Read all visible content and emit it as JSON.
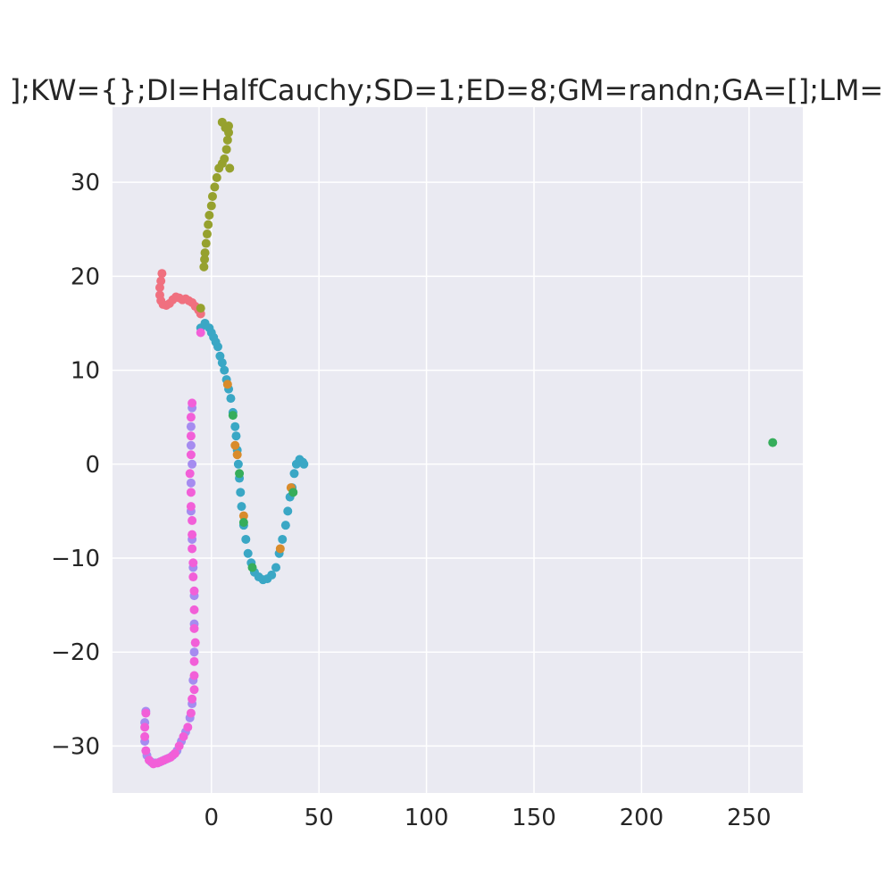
{
  "chart_data": {
    "type": "scatter",
    "title": "];KW={};DI=HalfCauchy;SD=1;ED=8;GM=randn;GA=[];LM=",
    "xlabel": "",
    "ylabel": "",
    "xlim": [
      -46,
      275
    ],
    "ylim": [
      -35,
      38
    ],
    "xticks": [
      0,
      50,
      100,
      150,
      200,
      250
    ],
    "yticks": [
      -30,
      -20,
      -10,
      0,
      10,
      20,
      30
    ],
    "xtick_labels": [
      "0",
      "50",
      "100",
      "150",
      "200",
      "250"
    ],
    "ytick_labels": [
      "−30",
      "−20",
      "−10",
      "0",
      "10",
      "20",
      "30"
    ],
    "grid": true,
    "background": "#eaeaf2",
    "series": [
      {
        "color": "#f0707f",
        "points": [
          [
            -23,
            20.3
          ],
          [
            -23.5,
            19.5
          ],
          [
            -24,
            18.8
          ],
          [
            -24,
            18.0
          ],
          [
            -23.5,
            17.4
          ],
          [
            -22.5,
            17.0
          ],
          [
            -21,
            16.9
          ],
          [
            -19.5,
            17.1
          ],
          [
            -18,
            17.5
          ],
          [
            -16.5,
            17.8
          ],
          [
            -15,
            17.7
          ],
          [
            -13.5,
            17.5
          ],
          [
            -12,
            17.6
          ],
          [
            -10.5,
            17.4
          ],
          [
            -9,
            17.2
          ],
          [
            -7.5,
            16.8
          ],
          [
            -6,
            16.4
          ],
          [
            -5,
            16.0
          ]
        ]
      },
      {
        "color": "#96a12e",
        "points": [
          [
            -3.5,
            21.0
          ],
          [
            -3.2,
            21.8
          ],
          [
            -3,
            22.5
          ],
          [
            -2.5,
            23.5
          ],
          [
            -2,
            24.5
          ],
          [
            -1.5,
            25.5
          ],
          [
            -1,
            26.5
          ],
          [
            0,
            27.5
          ],
          [
            0.5,
            28.5
          ],
          [
            1.5,
            29.5
          ],
          [
            2.5,
            30.5
          ],
          [
            3.5,
            31.5
          ],
          [
            5,
            32.0
          ],
          [
            6,
            32.5
          ],
          [
            7,
            33.5
          ],
          [
            7.5,
            34.5
          ],
          [
            8,
            35.3
          ],
          [
            8,
            36.0
          ],
          [
            6.5,
            35.8
          ],
          [
            5,
            36.4
          ],
          [
            8.5,
            31.5
          ],
          [
            -5,
            16.6
          ]
        ]
      },
      {
        "color": "#3aa7c5",
        "points": [
          [
            -5,
            14.5
          ],
          [
            -3,
            15.0
          ],
          [
            -1,
            14.5
          ],
          [
            0,
            14.0
          ],
          [
            1,
            13.5
          ],
          [
            2,
            13.0
          ],
          [
            3,
            12.5
          ],
          [
            4,
            11.5
          ],
          [
            5,
            10.8
          ],
          [
            6,
            10.0
          ],
          [
            7,
            9.0
          ],
          [
            8,
            8.0
          ],
          [
            9,
            7.0
          ],
          [
            10,
            5.5
          ],
          [
            11,
            4.0
          ],
          [
            11.5,
            3.0
          ],
          [
            12,
            1.5
          ],
          [
            12.5,
            0.0
          ],
          [
            13,
            -1.5
          ],
          [
            13.5,
            -3.0
          ],
          [
            14,
            -4.5
          ],
          [
            15,
            -6.5
          ],
          [
            16,
            -8.0
          ],
          [
            17,
            -9.5
          ],
          [
            18.5,
            -10.5
          ],
          [
            20,
            -11.5
          ],
          [
            22,
            -12.0
          ],
          [
            24,
            -12.3
          ],
          [
            26,
            -12.2
          ],
          [
            28,
            -11.8
          ],
          [
            30,
            -11.0
          ],
          [
            31.5,
            -9.5
          ],
          [
            33,
            -8.0
          ],
          [
            34.5,
            -6.5
          ],
          [
            35.5,
            -5.0
          ],
          [
            36.5,
            -3.5
          ],
          [
            37.5,
            -2.5
          ],
          [
            38.5,
            -1.0
          ],
          [
            39.5,
            0.0
          ],
          [
            41,
            0.5
          ],
          [
            42.5,
            0.2
          ],
          [
            43,
            0.0
          ]
        ]
      },
      {
        "color": "#d98b2b",
        "points": [
          [
            7.5,
            8.5
          ],
          [
            11,
            2.0
          ],
          [
            12,
            1.0
          ],
          [
            15,
            -5.5
          ],
          [
            32,
            -9.0
          ],
          [
            37,
            -2.5
          ]
        ]
      },
      {
        "color": "#36ad5b",
        "points": [
          [
            10,
            5.2
          ],
          [
            13,
            -1.0
          ],
          [
            15,
            -6.2
          ],
          [
            19,
            -11.0
          ],
          [
            38,
            -3.0
          ],
          [
            261,
            2.3
          ]
        ]
      },
      {
        "color": "#a58cf0",
        "points": [
          [
            -9,
            6.0
          ],
          [
            -9.5,
            4.0
          ],
          [
            -9.5,
            2.0
          ],
          [
            -9,
            0.0
          ],
          [
            -9.5,
            -2.0
          ],
          [
            -9.5,
            -5.0
          ],
          [
            -9,
            -8.0
          ],
          [
            -8.5,
            -11.0
          ],
          [
            -8,
            -14.0
          ],
          [
            -8,
            -17.0
          ],
          [
            -8,
            -20.0
          ],
          [
            -8.5,
            -23.0
          ],
          [
            -9,
            -25.5
          ],
          [
            -10,
            -27.0
          ],
          [
            -12,
            -28.5
          ],
          [
            -14,
            -29.5
          ],
          [
            -16,
            -30.5
          ],
          [
            -18,
            -31.0
          ],
          [
            -20,
            -31.3
          ],
          [
            -22,
            -31.5
          ],
          [
            -24,
            -31.7
          ],
          [
            -26,
            -31.8
          ],
          [
            -28,
            -31.7
          ],
          [
            -30,
            -31.0
          ],
          [
            -31,
            -29.5
          ],
          [
            -31,
            -27.5
          ],
          [
            -30.5,
            -26.3
          ]
        ]
      },
      {
        "color": "#f25fd8",
        "points": [
          [
            -9,
            6.5
          ],
          [
            -9.5,
            5.0
          ],
          [
            -9.5,
            3.0
          ],
          [
            -9.5,
            1.0
          ],
          [
            -10,
            -1.0
          ],
          [
            -9.5,
            -3.0
          ],
          [
            -9.5,
            -4.5
          ],
          [
            -9,
            -6.0
          ],
          [
            -9,
            -7.5
          ],
          [
            -9,
            -9.0
          ],
          [
            -8.5,
            -10.5
          ],
          [
            -8.5,
            -12.0
          ],
          [
            -8,
            -13.5
          ],
          [
            -8,
            -15.5
          ],
          [
            -8,
            -17.5
          ],
          [
            -7.5,
            -19.0
          ],
          [
            -8,
            -21.0
          ],
          [
            -8,
            -22.5
          ],
          [
            -8,
            -24.0
          ],
          [
            -9,
            -25.0
          ],
          [
            -9.5,
            -26.5
          ],
          [
            -11,
            -28.0
          ],
          [
            -13,
            -29.0
          ],
          [
            -15,
            -30.0
          ],
          [
            -17,
            -30.8
          ],
          [
            -19,
            -31.2
          ],
          [
            -21,
            -31.4
          ],
          [
            -23,
            -31.6
          ],
          [
            -25,
            -31.8
          ],
          [
            -27,
            -31.9
          ],
          [
            -29,
            -31.5
          ],
          [
            -30.5,
            -30.5
          ],
          [
            -31,
            -29.0
          ],
          [
            -31,
            -28.0
          ],
          [
            -30.5,
            -26.5
          ],
          [
            -5,
            14.0
          ]
        ]
      }
    ]
  }
}
